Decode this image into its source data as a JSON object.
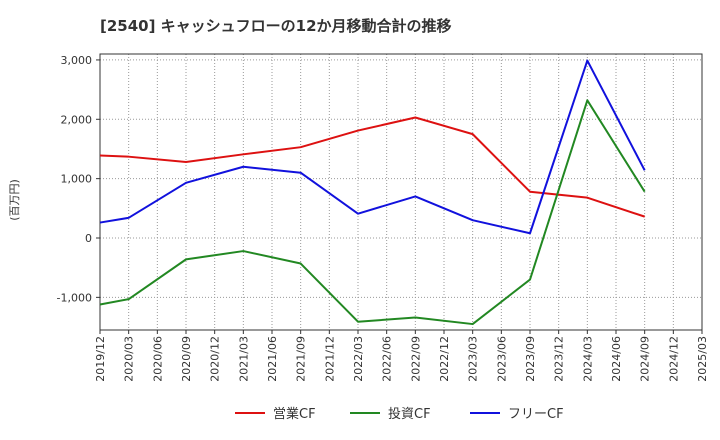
{
  "chart_data": {
    "type": "line",
    "title": "[2540]  キャッシュフローの12か月移動合計の推移",
    "ylabel": "(百万円)",
    "xlabel": "",
    "ylim": [
      -1550,
      3100
    ],
    "yticks": [
      3000,
      2000,
      1000,
      0,
      -1000
    ],
    "ytick_labels": [
      "3,000",
      "2,000",
      "1,000",
      "0",
      "-1,000"
    ],
    "x_labels": [
      "2019/12",
      "2020/03",
      "2020/06",
      "2020/09",
      "2020/12",
      "2021/03",
      "2021/06",
      "2021/09",
      "2021/12",
      "2022/03",
      "2022/06",
      "2022/09",
      "2022/12",
      "2023/03",
      "2023/06",
      "2023/09",
      "2023/12",
      "2024/03",
      "2024/06",
      "2024/09",
      "2024/12",
      "2025/03"
    ],
    "grid": true,
    "legend_position": "bottom",
    "series": [
      {
        "name": "営業CF",
        "color": "#dd1111",
        "points": [
          [
            0,
            1390
          ],
          [
            1,
            1370
          ],
          [
            3,
            1280
          ],
          [
            5,
            1410
          ],
          [
            7,
            1530
          ],
          [
            9,
            1810
          ],
          [
            11,
            2030
          ],
          [
            13,
            1750
          ],
          [
            15,
            780
          ],
          [
            17,
            680
          ],
          [
            19,
            360
          ]
        ]
      },
      {
        "name": "投資CF",
        "color": "#228822",
        "points": [
          [
            0,
            -1120
          ],
          [
            1,
            -1030
          ],
          [
            3,
            -360
          ],
          [
            5,
            -220
          ],
          [
            7,
            -430
          ],
          [
            9,
            -1410
          ],
          [
            11,
            -1340
          ],
          [
            13,
            -1450
          ],
          [
            15,
            -700
          ],
          [
            17,
            2320
          ],
          [
            19,
            780
          ]
        ]
      },
      {
        "name": "フリーCF",
        "color": "#1111dd",
        "points": [
          [
            0,
            260
          ],
          [
            1,
            340
          ],
          [
            3,
            930
          ],
          [
            5,
            1200
          ],
          [
            7,
            1100
          ],
          [
            9,
            410
          ],
          [
            11,
            700
          ],
          [
            13,
            300
          ],
          [
            15,
            80
          ],
          [
            17,
            2990
          ],
          [
            19,
            1140
          ]
        ]
      }
    ]
  }
}
